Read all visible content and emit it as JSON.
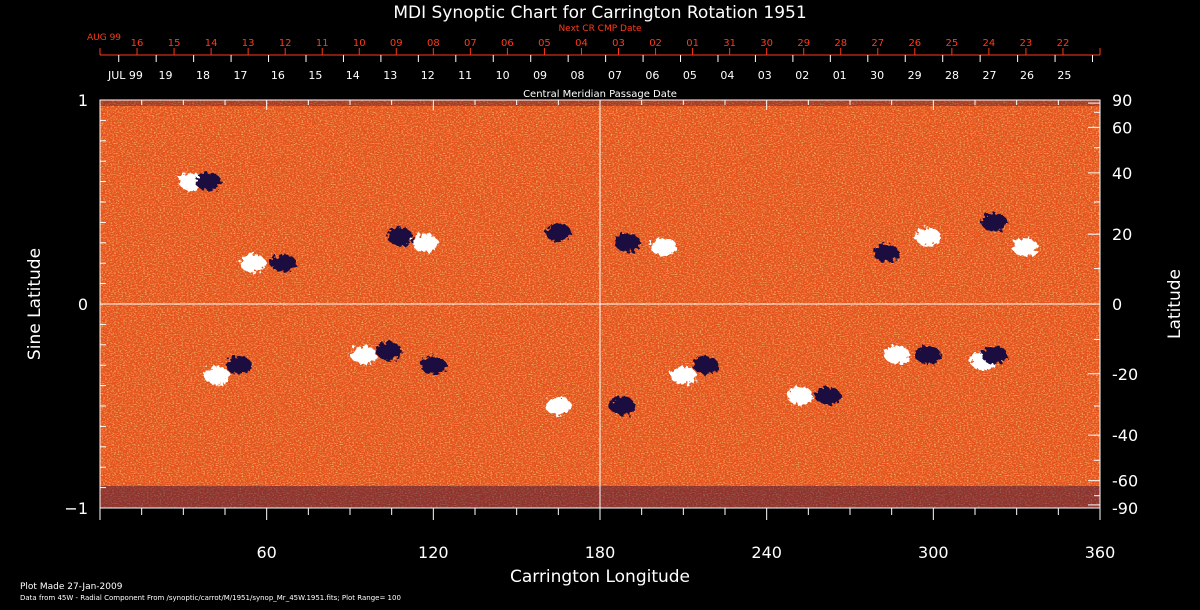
{
  "chart_data": {
    "type": "heatmap",
    "title": "MDI Synoptic Chart for Carrington Rotation 1951",
    "top_axis": {
      "label": "Next CR CMP Date",
      "start_label": "AUG 99",
      "ticks": [
        "16",
        "15",
        "14",
        "13",
        "12",
        "11",
        "10",
        "09",
        "08",
        "07",
        "06",
        "05",
        "04",
        "03",
        "02",
        "01",
        "31",
        "30",
        "29",
        "28",
        "27",
        "26",
        "25",
        "24",
        "23",
        "22"
      ]
    },
    "date_axis": {
      "label": "Central Meridian Passage Date",
      "start_label": "JUL 99",
      "ticks": [
        "19",
        "18",
        "17",
        "16",
        "15",
        "14",
        "13",
        "12",
        "11",
        "10",
        "09",
        "08",
        "07",
        "06",
        "05",
        "04",
        "03",
        "02",
        "01",
        "30",
        "29",
        "28",
        "27",
        "26",
        "25"
      ]
    },
    "xlabel": "Carrington Longitude",
    "xlim": [
      0,
      360
    ],
    "xticks": [
      60,
      120,
      180,
      240,
      300,
      360
    ],
    "ylabel_left": "Sine Latitude",
    "ylim": [
      -1,
      1
    ],
    "yticks_left": [
      "1",
      "0",
      "−1"
    ],
    "ylabel_right": "Latitude",
    "yticks_right": [
      90,
      60,
      40,
      20,
      0,
      -20,
      -40,
      -60,
      -90
    ],
    "footer_line1": "Plot Made 27-Jan-2009",
    "footer_line2": "Data from 45W - Radial Component From /synoptic/carrot/M/1951/synop_Mr_45W.1951.fits; Plot Range= 100",
    "colors": {
      "background_field": "#e8521a",
      "positive_polarity": "#ffffff",
      "negative_polarity": "#1a0a40",
      "axis": "#ffffff",
      "date_axis_red": "#ff3a1a"
    },
    "active_regions": [
      {
        "lon": 33,
        "sinlat": 0.6,
        "polarity": "positive"
      },
      {
        "lon": 39,
        "sinlat": 0.6,
        "polarity": "negative"
      },
      {
        "lon": 55,
        "sinlat": 0.2,
        "polarity": "positive"
      },
      {
        "lon": 66,
        "sinlat": 0.2,
        "polarity": "negative"
      },
      {
        "lon": 108,
        "sinlat": 0.33,
        "polarity": "negative"
      },
      {
        "lon": 117,
        "sinlat": 0.3,
        "polarity": "positive"
      },
      {
        "lon": 165,
        "sinlat": 0.35,
        "polarity": "negative"
      },
      {
        "lon": 190,
        "sinlat": 0.3,
        "polarity": "negative"
      },
      {
        "lon": 203,
        "sinlat": 0.28,
        "polarity": "positive"
      },
      {
        "lon": 283,
        "sinlat": 0.25,
        "polarity": "negative"
      },
      {
        "lon": 298,
        "sinlat": 0.33,
        "polarity": "positive"
      },
      {
        "lon": 322,
        "sinlat": 0.4,
        "polarity": "negative"
      },
      {
        "lon": 333,
        "sinlat": 0.28,
        "polarity": "positive"
      },
      {
        "lon": 50,
        "sinlat": -0.3,
        "polarity": "negative"
      },
      {
        "lon": 42,
        "sinlat": -0.35,
        "polarity": "positive"
      },
      {
        "lon": 95,
        "sinlat": -0.25,
        "polarity": "positive"
      },
      {
        "lon": 104,
        "sinlat": -0.23,
        "polarity": "negative"
      },
      {
        "lon": 120,
        "sinlat": -0.3,
        "polarity": "negative"
      },
      {
        "lon": 165,
        "sinlat": -0.5,
        "polarity": "positive"
      },
      {
        "lon": 188,
        "sinlat": -0.5,
        "polarity": "negative"
      },
      {
        "lon": 210,
        "sinlat": -0.35,
        "polarity": "positive"
      },
      {
        "lon": 218,
        "sinlat": -0.3,
        "polarity": "negative"
      },
      {
        "lon": 252,
        "sinlat": -0.45,
        "polarity": "positive"
      },
      {
        "lon": 262,
        "sinlat": -0.45,
        "polarity": "negative"
      },
      {
        "lon": 287,
        "sinlat": -0.25,
        "polarity": "positive"
      },
      {
        "lon": 298,
        "sinlat": -0.25,
        "polarity": "negative"
      },
      {
        "lon": 318,
        "sinlat": -0.28,
        "polarity": "positive"
      },
      {
        "lon": 322,
        "sinlat": -0.25,
        "polarity": "negative"
      }
    ]
  }
}
